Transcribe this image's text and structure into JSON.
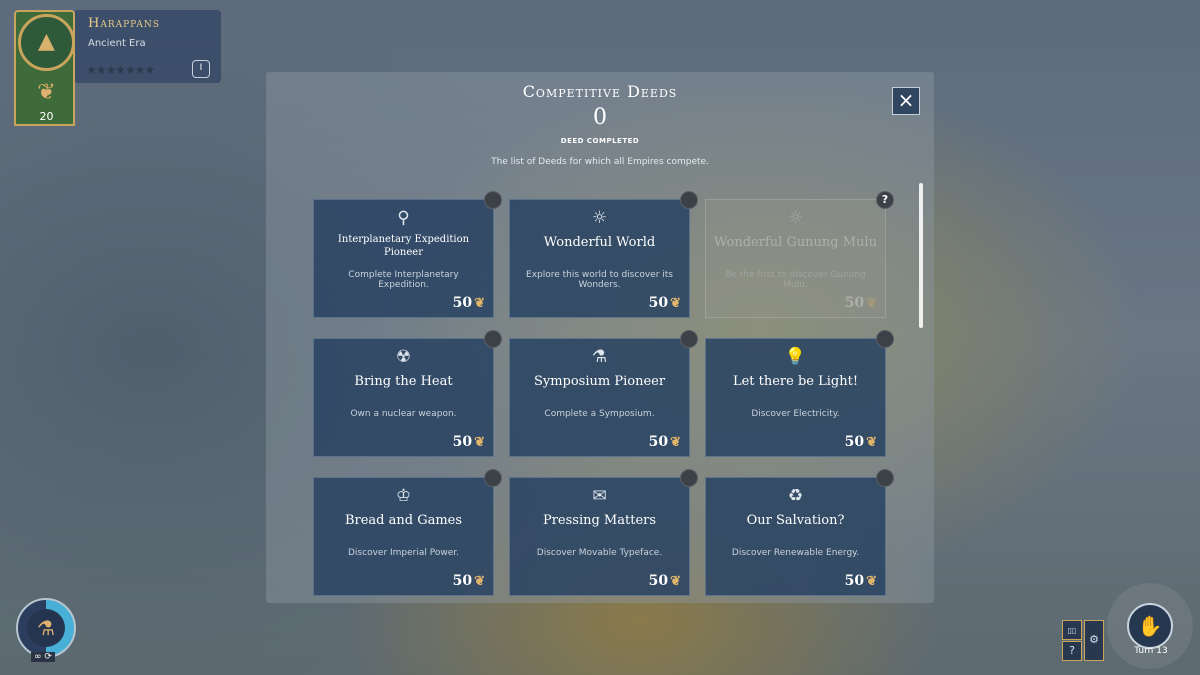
{
  "empire": {
    "name": "Harappans",
    "era": "Ancient Era",
    "stars": "★★★★★★★",
    "era_badge": "I",
    "fame": "20",
    "emblem_icon": "mountain-emblem-icon",
    "fame_icon": "laurel-icon"
  },
  "modal": {
    "title": "Competitive Deeds",
    "count": "0",
    "count_label": "DEED COMPLETED",
    "description": "The list of Deeds for which all Empires compete.",
    "close_icon": "×"
  },
  "deeds": [
    {
      "icon": "⚲",
      "icon_name": "expedition-icon",
      "name": "Interplanetary Expedition Pioneer",
      "desc": "Complete Interplanetary Expedition.",
      "reward": "50",
      "status": "",
      "locked": false
    },
    {
      "icon": "☼",
      "icon_name": "wonder-icon",
      "name": "Wonderful World",
      "desc": "Explore this world to discover its Wonders.",
      "reward": "50",
      "status": "",
      "locked": false
    },
    {
      "icon": "☼",
      "icon_name": "wonder-icon",
      "name": "Wonderful Gunung Mulu",
      "desc": "Be the first to discover Gunung Mulu.",
      "reward": "50",
      "status": "?",
      "locked": true
    },
    {
      "icon": "☢",
      "icon_name": "nuclear-icon",
      "name": "Bring the Heat",
      "desc": "Own a nuclear weapon.",
      "reward": "50",
      "status": "",
      "locked": false
    },
    {
      "icon": "⚗",
      "icon_name": "symposium-icon",
      "name": "Symposium Pioneer",
      "desc": "Complete a Symposium.",
      "reward": "50",
      "status": "",
      "locked": false
    },
    {
      "icon": "💡",
      "icon_name": "lightbulb-icon",
      "name": "Let there be Light!",
      "desc": "Discover Electricity.",
      "reward": "50",
      "status": "",
      "locked": false
    },
    {
      "icon": "♔",
      "icon_name": "crown-icon",
      "name": "Bread and Games",
      "desc": "Discover Imperial Power.",
      "reward": "50",
      "status": "",
      "locked": false
    },
    {
      "icon": "✉",
      "icon_name": "printing-press-icon",
      "name": "Pressing Matters",
      "desc": "Discover Movable Typeface.",
      "reward": "50",
      "status": "",
      "locked": false
    },
    {
      "icon": "♻",
      "icon_name": "renewable-icon",
      "name": "Our Salvation?",
      "desc": "Discover Renewable Energy.",
      "reward": "50",
      "status": "",
      "locked": false
    }
  ],
  "science": {
    "icon": "⚗",
    "label": "∞ ⟳",
    "progress_percent": 50,
    "accent": "#48b0d6"
  },
  "hud": {
    "turn_label": "Turn 13",
    "turn_icon": "end-turn-icon",
    "book_icon": "▯▯",
    "help_icon": "?",
    "settings_icon": "⚙"
  },
  "colors": {
    "card": "#284262",
    "gold": "#e2b56a"
  }
}
